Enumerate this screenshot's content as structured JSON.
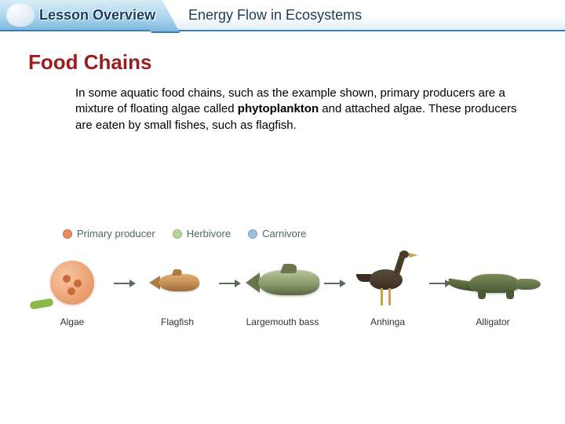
{
  "header": {
    "lesson_label": "Lesson Overview",
    "topic_label": "Energy Flow in Ecosystems"
  },
  "section": {
    "title": "Food Chains",
    "title_color": "#9a1c1c",
    "paragraph_pre": "In some aquatic food chains, such as the example shown, primary producers are a mixture of floating algae called ",
    "paragraph_bold": "phytoplankton",
    "paragraph_post": " and attached algae. These producers are eaten by small fishes, such as flagfish."
  },
  "legend": {
    "items": [
      {
        "label": "Primary producer",
        "color": "#e88a5a"
      },
      {
        "label": "Herbivore",
        "color": "#b6d49a"
      },
      {
        "label": "Carnivore",
        "color": "#9ac0e0"
      }
    ]
  },
  "chain": {
    "organisms": [
      {
        "name": "Algae"
      },
      {
        "name": "Flagfish"
      },
      {
        "name": "Largemouth bass"
      },
      {
        "name": "Anhinga"
      },
      {
        "name": "Alligator"
      }
    ],
    "arrow_color": "#5a6a5a"
  }
}
